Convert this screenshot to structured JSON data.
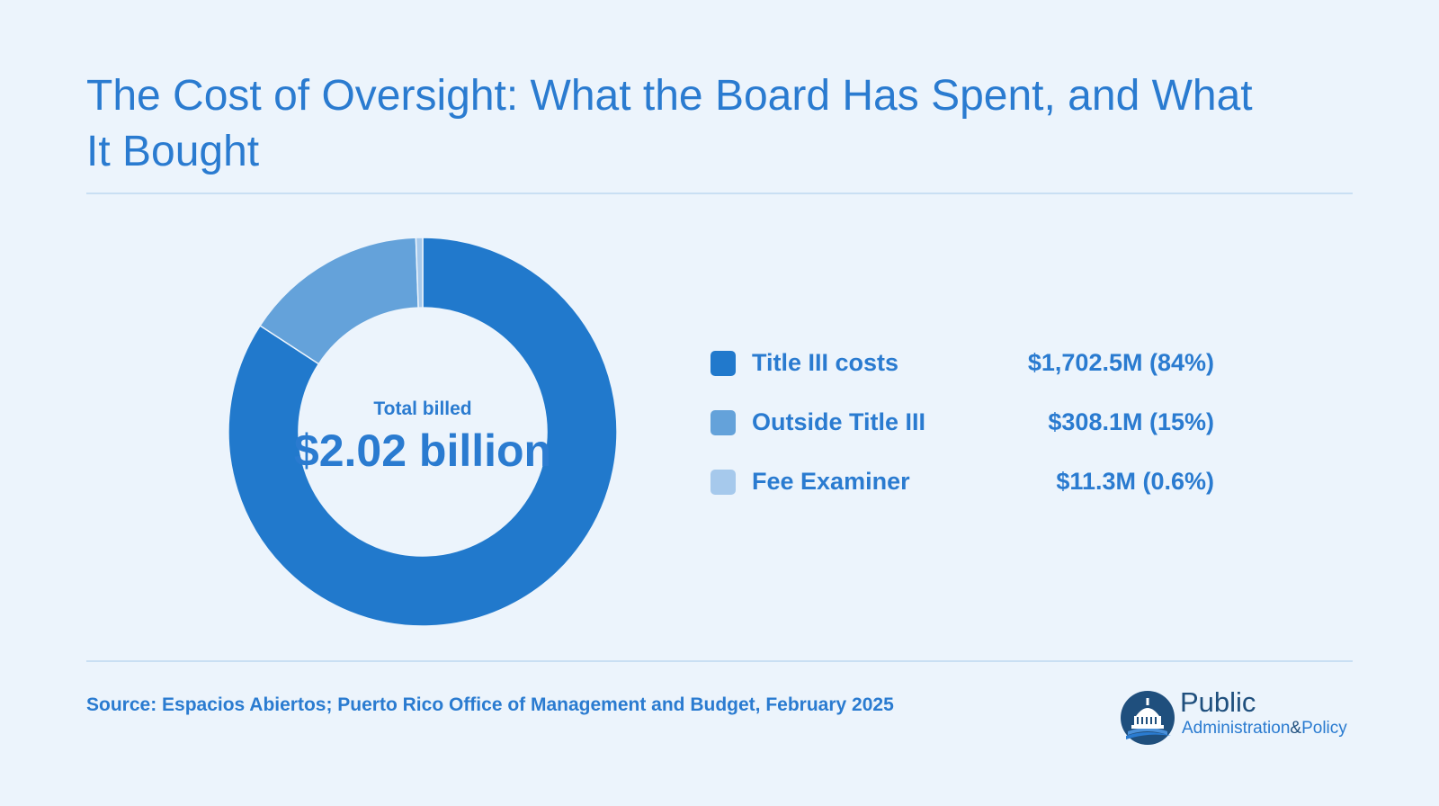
{
  "page": {
    "title": "The Cost of Oversight: What the Board Has Spent, and What It Bought",
    "source": "Source: Espacios Abiertos; Puerto Rico Office of Management and Budget, February 2025",
    "logo": {
      "word1": "Public",
      "word2a": "Administration",
      "word2b": "&",
      "word2c": "Policy"
    }
  },
  "chart_data": {
    "type": "pie",
    "style": "donut",
    "center_label": "Total billed",
    "center_value": "$2.02 billion",
    "legend_placement": "right",
    "slices": [
      {
        "name": "Title III costs",
        "value": 1702.5,
        "display": "$1,702.5M (84%)",
        "color": "#2179cc"
      },
      {
        "name": "Outside Title III",
        "value": 308.1,
        "display": "$308.1M (15%)",
        "color": "#64a2da"
      },
      {
        "name": "Fee Examiner",
        "value": 11.3,
        "display": "$11.3M (0.6%)",
        "color": "#a6c9ec"
      }
    ]
  },
  "colors": {
    "background": "#ecf4fc",
    "accent": "#2a7bd0",
    "rule": "#c9dff3",
    "logo_dark": "#1f4f7d"
  }
}
